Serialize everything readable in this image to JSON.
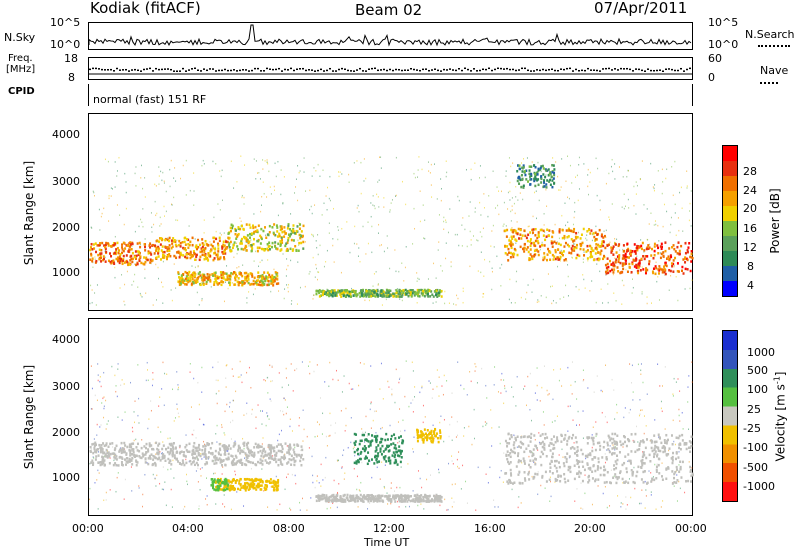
{
  "header": {
    "station": "Kodiak (fitACF)",
    "beam": "Beam 02",
    "date": "07/Apr/2011"
  },
  "top_panels": {
    "nsky_label": "N.Sky",
    "nsky_ticks": [
      "10^5",
      "10^0"
    ],
    "nsearch_label": "N.Search",
    "nsearch_ticks": [
      "10^5",
      "10^0"
    ],
    "freq_label_line1": "Freq.",
    "freq_label_line2": "[MHz]",
    "freq_ticks": [
      "18",
      "8"
    ],
    "nave_label": "Nave",
    "nave_ticks": [
      "60",
      "0"
    ],
    "cpid_label": "CPID",
    "cpid_text": "normal (fast) 151 RF"
  },
  "colors": {
    "power_scale": [
      "#0000ff",
      "#1f5fa6",
      "#2e8b57",
      "#5aa05a",
      "#7fbf3f",
      "#f0d000",
      "#f5a000",
      "#f07000",
      "#e83010",
      "#ff0000"
    ],
    "velocity_scale": [
      "#1a2fd0",
      "#3355bb",
      "#2f8f5a",
      "#55c040",
      "#c8c8c0",
      "#f0c000",
      "#f09000",
      "#f05000",
      "#ff1010"
    ],
    "ground_scatter": "#c0c0bc"
  },
  "chart_data": [
    {
      "type": "heatmap",
      "title": "Power",
      "ylabel": "Slant Range [km]",
      "xlabel": "Time UT",
      "y_ticks": [
        "4000",
        "3000",
        "2000",
        "1000"
      ],
      "ylim": [
        180,
        4500
      ],
      "x_ticks": [
        "00:00",
        "04:00",
        "08:00",
        "12:00",
        "16:00",
        "20:00",
        "00:00"
      ],
      "xlim_hours": [
        0,
        24
      ],
      "colorbar_label": "Power [dB]",
      "colorbar_ticks": [
        "28",
        "24",
        "20",
        "16",
        "12",
        "8",
        "4"
      ],
      "colorbar_range": [
        0,
        30
      ],
      "bands": [
        {
          "t_start": 0,
          "t_end": 2.5,
          "range_start": 1200,
          "range_end": 1700,
          "value": 22
        },
        {
          "t_start": 2.5,
          "t_end": 5.5,
          "range_start": 1300,
          "range_end": 1800,
          "value": 20
        },
        {
          "t_start": 5.5,
          "t_end": 8.5,
          "range_start": 1500,
          "range_end": 2100,
          "value": 16
        },
        {
          "t_start": 3.5,
          "t_end": 7.5,
          "range_start": 750,
          "range_end": 1050,
          "value": 18
        },
        {
          "t_start": 16.5,
          "t_end": 20.5,
          "range_start": 1300,
          "range_end": 2000,
          "value": 20
        },
        {
          "t_start": 20.5,
          "t_end": 24,
          "range_start": 1000,
          "range_end": 1700,
          "value": 24
        },
        {
          "t_start": 9,
          "t_end": 14,
          "range_start": 500,
          "range_end": 650,
          "value": 12
        },
        {
          "t_start": 17,
          "t_end": 18.5,
          "range_start": 2900,
          "range_end": 3400,
          "value": 8
        }
      ]
    },
    {
      "type": "heatmap",
      "title": "Velocity",
      "ylabel": "Slant Range [km]",
      "xlabel": "Time UT",
      "y_ticks": [
        "4000",
        "3000",
        "2000",
        "1000"
      ],
      "ylim": [
        180,
        4500
      ],
      "x_ticks": [
        "00:00",
        "04:00",
        "08:00",
        "12:00",
        "16:00",
        "20:00",
        "00:00"
      ],
      "xlim_hours": [
        0,
        24
      ],
      "colorbar_label": "Velocity [m s",
      "colorbar_label_sup": "-1",
      "colorbar_label_end": "]",
      "colorbar_ticks": [
        "1000",
        "500",
        "100",
        "25",
        "-25",
        "-100",
        "-500",
        "-1000"
      ],
      "colorbar_range": [
        -1000,
        1000
      ],
      "bands": [
        {
          "t_start": 0,
          "t_end": 8.5,
          "range_start": 1300,
          "range_end": 1800,
          "value": 0
        },
        {
          "t_start": 5,
          "t_end": 7.5,
          "range_start": 750,
          "range_end": 1000,
          "value": -120
        },
        {
          "t_start": 4.8,
          "t_end": 5.5,
          "range_start": 750,
          "range_end": 1000,
          "value": 300
        },
        {
          "t_start": 16.5,
          "t_end": 24,
          "range_start": 900,
          "range_end": 2000,
          "value": 0
        },
        {
          "t_start": 9,
          "t_end": 14,
          "range_start": 500,
          "range_end": 650,
          "value": 0
        },
        {
          "t_start": 10.5,
          "t_end": 12.5,
          "range_start": 1300,
          "range_end": 2000,
          "value": 400
        },
        {
          "t_start": 13,
          "t_end": 14,
          "range_start": 1800,
          "range_end": 2100,
          "value": -300
        }
      ]
    }
  ]
}
